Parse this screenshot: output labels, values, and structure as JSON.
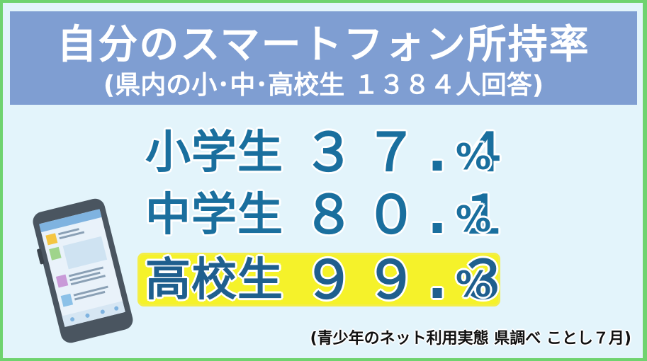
{
  "header": {
    "title": "自分のスマートフォン所持率",
    "subtitle": "(県内の小･中･高校生 １３８４人回答)"
  },
  "stats": [
    {
      "label": "小学生",
      "value": "３７.４",
      "unit": "%",
      "highlight": false
    },
    {
      "label": "中学生",
      "value": "８０.１",
      "unit": "%",
      "highlight": false
    },
    {
      "label": "高校生",
      "value": "９９.３",
      "unit": "%",
      "highlight": true
    }
  ],
  "source": "(青少年のネット利用実態  県調べ  ことし７月)",
  "illustration": {
    "icon": "smartphone-icon",
    "frame_color": "#4a5560",
    "screen_color": "#cfe3f2",
    "accent_color": "#f4c542"
  },
  "colors": {
    "header_bg": "#7f9ed2",
    "page_bg": "#e3f4fb",
    "stat_text": "#1a6f9e",
    "highlight": "#f5f22a",
    "frame": "#6fd36f"
  }
}
